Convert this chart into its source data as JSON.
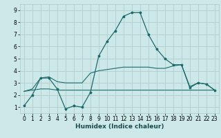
{
  "xlabel": "Humidex (Indice chaleur)",
  "xlim": [
    -0.5,
    23.5
  ],
  "ylim": [
    0.5,
    9.5
  ],
  "xticks": [
    0,
    1,
    2,
    3,
    4,
    5,
    6,
    7,
    8,
    9,
    10,
    11,
    12,
    13,
    14,
    15,
    16,
    17,
    18,
    19,
    20,
    21,
    22,
    23
  ],
  "yticks": [
    1,
    2,
    3,
    4,
    5,
    6,
    7,
    8,
    9
  ],
  "bg_color": "#cde8e8",
  "grid_color": "#b0cccc",
  "line_color": "#1a6b6b",
  "line1_x": [
    0,
    1,
    2,
    3,
    4,
    5,
    6,
    7,
    8,
    9,
    10,
    11,
    12,
    13,
    14,
    15,
    16,
    17,
    18,
    19,
    20,
    21,
    22,
    23
  ],
  "line1_y": [
    1.1,
    2.0,
    3.4,
    3.4,
    2.5,
    0.85,
    1.1,
    1.0,
    2.2,
    5.2,
    6.4,
    7.3,
    8.5,
    8.8,
    8.8,
    7.0,
    5.8,
    5.0,
    4.5,
    4.5,
    2.6,
    3.0,
    2.9,
    2.4
  ],
  "line2_x": [
    0,
    1,
    2,
    3,
    4,
    5,
    6,
    7,
    8,
    9,
    10,
    11,
    12,
    13,
    14,
    15,
    16,
    17,
    18,
    19,
    20,
    21,
    22,
    23
  ],
  "line2_y": [
    2.3,
    2.4,
    2.5,
    2.5,
    2.4,
    2.4,
    2.4,
    2.4,
    2.4,
    2.4,
    2.4,
    2.4,
    2.4,
    2.4,
    2.4,
    2.4,
    2.4,
    2.4,
    2.4,
    2.4,
    2.4,
    2.4,
    2.4,
    2.4
  ],
  "line3_x": [
    0,
    1,
    2,
    3,
    4,
    5,
    6,
    7,
    8,
    9,
    10,
    11,
    12,
    13,
    14,
    15,
    16,
    17,
    18,
    19,
    20,
    21,
    22,
    23
  ],
  "line3_y": [
    2.3,
    2.5,
    3.4,
    3.5,
    3.1,
    3.0,
    3.0,
    3.0,
    3.8,
    4.0,
    4.1,
    4.2,
    4.3,
    4.3,
    4.3,
    4.3,
    4.2,
    4.2,
    4.4,
    4.5,
    2.7,
    3.0,
    2.9,
    2.4
  ]
}
